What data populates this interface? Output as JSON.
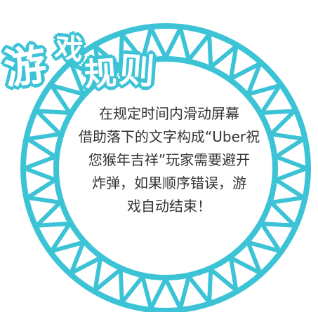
{
  "title": {
    "chars": [
      "游",
      "戏",
      "规",
      "则"
    ]
  },
  "rules": {
    "lines": [
      "在规定时间内滑动屏幕",
      "借助落下的文字构成“Uber祝",
      "您猴年吉祥”玩家需要避开",
      "炸弹，如果顺序错误，游",
      "戏自动结束！"
    ]
  },
  "colors": {
    "ring": "#3cc3d6",
    "text": "#333333",
    "title_fill": "#ffffff"
  }
}
